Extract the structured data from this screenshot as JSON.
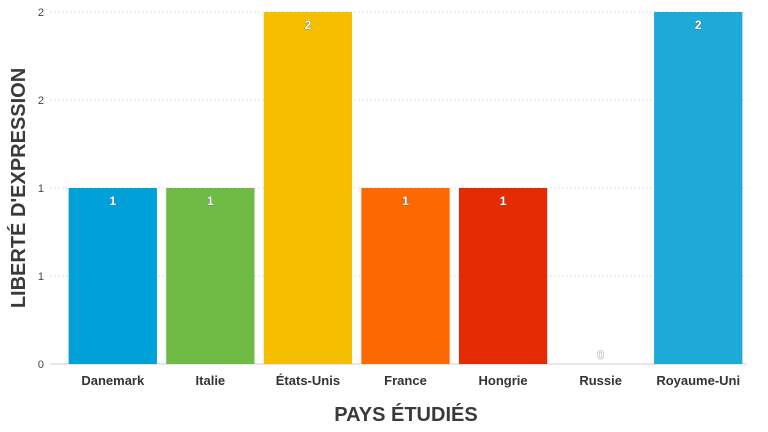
{
  "chart_data": {
    "type": "bar",
    "categories": [
      "Danemark",
      "Italie",
      "États-Unis",
      "France",
      "Hongrie",
      "Russie",
      "Royaume-Uni"
    ],
    "values": [
      1,
      1,
      2,
      1,
      1,
      0,
      2
    ],
    "data_labels": [
      "1",
      "1",
      "2",
      "1",
      "1",
      "0",
      "2"
    ],
    "colors": [
      "#00a0d8",
      "#6fba45",
      "#f5bf00",
      "#fe6800",
      "#e42b03",
      "#cccccc",
      "#1eaad9"
    ],
    "xlabel": "PAYS ÉTUDIÉS",
    "ylabel": "LIBERTÉ D'EXPRESSION",
    "ylim": [
      0,
      2
    ],
    "yticks": [
      0,
      0.5,
      1,
      1.5,
      2
    ],
    "ytick_labels": [
      "0",
      "1",
      "1",
      "2",
      "2"
    ],
    "grid": true,
    "legend": "none"
  }
}
